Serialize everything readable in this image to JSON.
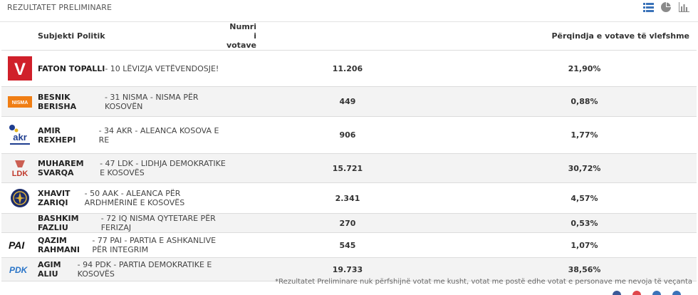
{
  "header": {
    "title": "REZULTATET PRELIMINARE"
  },
  "view_icons": [
    "table-view-icon",
    "pie-chart-icon",
    "bar-chart-icon"
  ],
  "accent_color": "#3b73b9",
  "columns": {
    "subject": "Subjekti Politik",
    "votes": "Numri i votave",
    "percent": "Përqindja e votave të vlefshme"
  },
  "rows": [
    {
      "name": "FATON TOPALLI",
      "party": " - 10 LËVIZJA VETËVENDOSJE!",
      "votes": "11.206",
      "percent": "21,90%",
      "logo": "vetevendosje-logo"
    },
    {
      "name": "BESNIK BERISHA",
      "party": " - 31 NISMA - NISMA PËR KOSOVËN",
      "votes": "449",
      "percent": "0,88%",
      "logo": "nisma-logo"
    },
    {
      "name": "AMIR REXHEPI",
      "party": " - 34 AKR - ALEANCA KOSOVA E RE",
      "votes": "906",
      "percent": "1,77%",
      "logo": "akr-logo"
    },
    {
      "name": "MUHAREM SVARQA",
      "party": " - 47 LDK - LIDHJA DEMOKRATIKE E KOSOVËS",
      "votes": "15.721",
      "percent": "30,72%",
      "logo": "ldk-logo"
    },
    {
      "name": "XHAVIT ZARIQI",
      "party": " - 50 AAK - ALEANCA PËR ARDHMËRINË E KOSOVËS",
      "votes": "2.341",
      "percent": "4,57%",
      "logo": "aak-logo"
    },
    {
      "name": "BASHKIM FAZLIU",
      "party": " - 72 IQ NISMA QYTETARE PËR FERIZAJ",
      "votes": "270",
      "percent": "0,53%",
      "logo": ""
    },
    {
      "name": "QAZIM RAHMANI",
      "party": " - 77 PAI - PARTIA E ASHKANLIVE PËR INTEGRIM",
      "votes": "545",
      "percent": "1,07%",
      "logo": "pai-logo"
    },
    {
      "name": "AGIM ALIU",
      "party": " - 94 PDK - PARTIA DEMOKRATIKE E KOSOVËS",
      "votes": "19.733",
      "percent": "38,56%",
      "logo": "pdk-logo"
    }
  ],
  "logo_texts": {
    "vv": "V",
    "nisma": "NISMA",
    "akr": "akr",
    "ldk": "LDK",
    "pai": "PAI",
    "pdk": "PDK"
  },
  "footnote": "*Rezultatet Preliminare nuk përfshijnë votat me kusht, votat me postë edhe votat e personave me nevoja të veçanta"
}
